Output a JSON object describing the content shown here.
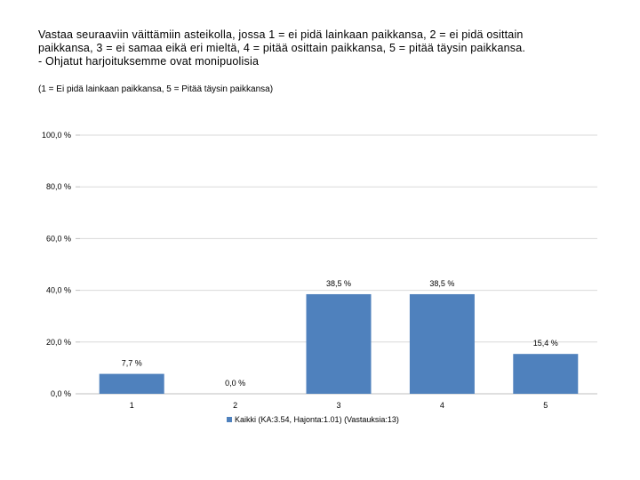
{
  "chart_data": {
    "type": "bar",
    "title_lines": [
      "Vastaa seuraaviin väittämiin asteikolla, jossa 1 = ei pidä lainkaan paikkansa, 2 = ei pidä osittain",
      "paikkansa, 3 = ei samaa eikä eri mieltä, 4 = pitää osittain paikkansa, 5 = pitää täysin paikkansa.",
      "- Ohjatut harjoituksemme ovat monipuolisia"
    ],
    "subtitle": "(1 = Ei pidä lainkaan paikkansa, 5 = Pitää täysin paikkansa)",
    "categories": [
      "1",
      "2",
      "3",
      "4",
      "5"
    ],
    "series": [
      {
        "name": "Kaikki (KA:3.54, Hajonta:1.01) (Vastauksia:13)",
        "values": [
          7.7,
          0.0,
          38.5,
          38.5,
          15.4
        ],
        "labels": [
          "7,7 %",
          "0,0 %",
          "38,5 %",
          "38,5 %",
          "15,4 %"
        ],
        "color": "#4f81bd"
      }
    ],
    "ylim": [
      0,
      100
    ],
    "yticks": [
      {
        "value": 0,
        "label": "0,0 %"
      },
      {
        "value": 20,
        "label": "20,0 %"
      },
      {
        "value": 40,
        "label": "40,0 %"
      },
      {
        "value": 60,
        "label": "60,0 %"
      },
      {
        "value": 80,
        "label": "80,0 %"
      },
      {
        "value": 100,
        "label": "100,0 %"
      }
    ],
    "grid": true,
    "legend_position": "bottom"
  }
}
